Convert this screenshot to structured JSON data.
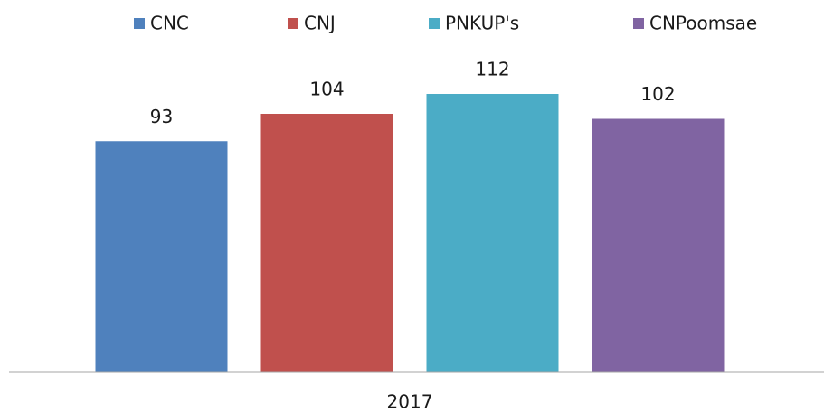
{
  "chart_data": {
    "type": "bar",
    "categories": [
      "2017"
    ],
    "series": [
      {
        "name": "CNC",
        "color": "#4f81bd",
        "values": [
          93
        ]
      },
      {
        "name": "CNJ",
        "color": "#c0504d",
        "values": [
          104
        ]
      },
      {
        "name": "PNKUP's",
        "color": "#4bacc6",
        "values": [
          112
        ]
      },
      {
        "name": "CNPoomsae",
        "color": "#8064a2",
        "values": [
          102
        ]
      }
    ],
    "ylim": [
      0,
      120
    ],
    "legend": "top"
  }
}
